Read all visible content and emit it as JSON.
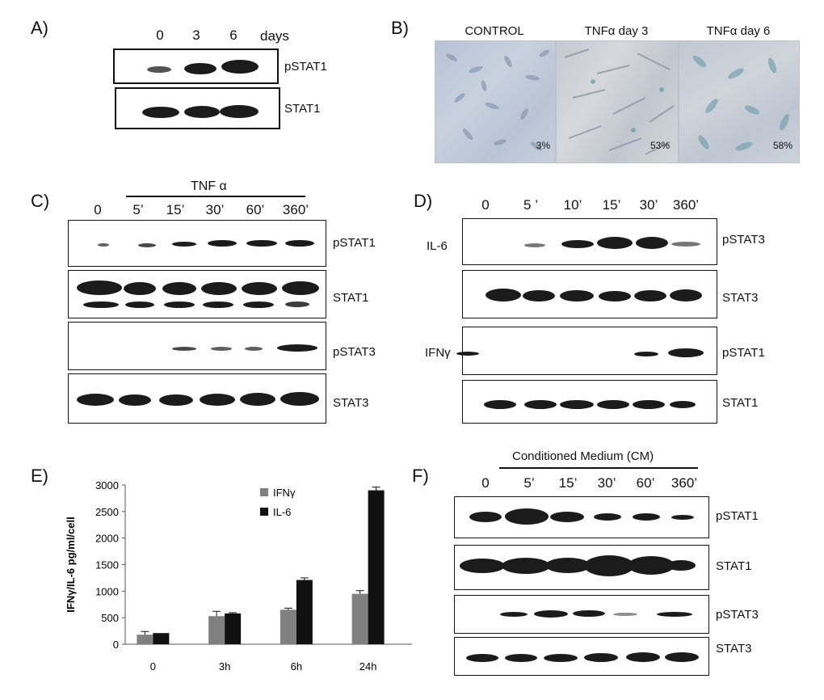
{
  "panelA": {
    "label": "A)",
    "lanes": [
      "0",
      "3",
      "6"
    ],
    "unit": "days",
    "blots": [
      "pSTAT1",
      "STAT1"
    ]
  },
  "panelB": {
    "label": "B)",
    "images": [
      {
        "caption": "CONTROL",
        "percent": "3%"
      },
      {
        "caption": "TNFα day 3",
        "percent": "53%"
      },
      {
        "caption": "TNFα day 6",
        "percent": "58%"
      }
    ]
  },
  "panelC": {
    "label": "C)",
    "treatment": "TNF α",
    "lanes": [
      "0",
      "5’",
      "15’",
      "30’",
      "60’",
      "360’"
    ],
    "blots": [
      "pSTAT1",
      "STAT1",
      "pSTAT3",
      "STAT3"
    ]
  },
  "panelD": {
    "label": "D)",
    "lanes": [
      "0",
      "5 ’",
      "10’",
      "15’",
      "30’",
      "360’"
    ],
    "groups": [
      "IL-6",
      "IFNγ"
    ],
    "blots": [
      "pSTAT3",
      "STAT3",
      "pSTAT1",
      "STAT1"
    ]
  },
  "panelE": {
    "label": "E)"
  },
  "panelF": {
    "label": "F)",
    "treatment": "Conditioned Medium (CM)",
    "lanes": [
      "0",
      "5’",
      "15’",
      "30’",
      "60’",
      "360’"
    ],
    "blots": [
      "pSTAT1",
      "STAT1",
      "pSTAT3",
      "STAT3"
    ]
  },
  "chart_data": {
    "type": "bar",
    "categories": [
      "0",
      "3h",
      "6h",
      "24h"
    ],
    "series": [
      {
        "name": "IFNγ",
        "values": [
          180,
          530,
          650,
          950
        ],
        "errors": [
          60,
          90,
          30,
          60
        ],
        "color": "#808080"
      },
      {
        "name": "IL-6",
        "values": [
          210,
          580,
          1210,
          2900
        ],
        "errors": [
          0,
          15,
          40,
          60
        ],
        "color": "#111111"
      }
    ],
    "ylabel": "IFNγ/IL-6 pg/ml/cell",
    "ylim": [
      0,
      3000
    ],
    "yticks": [
      0,
      500,
      1000,
      1500,
      2000,
      2500,
      3000
    ],
    "grid": false,
    "legend": "top-right"
  }
}
